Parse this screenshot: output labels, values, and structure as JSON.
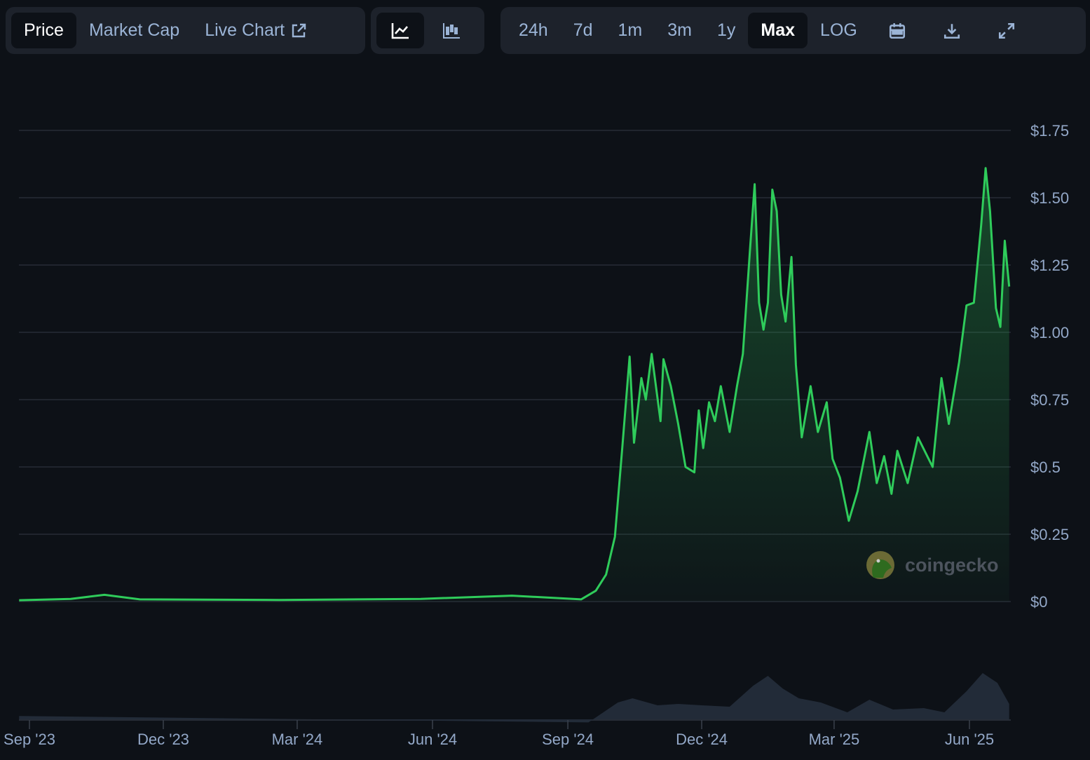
{
  "toolbar": {
    "views": [
      {
        "label": "Price",
        "active": true
      },
      {
        "label": "Market Cap",
        "active": false
      },
      {
        "label": "Live Chart",
        "active": false,
        "icon": "external-link-icon"
      }
    ],
    "chart_types": [
      {
        "icon": "line-chart-icon",
        "active": true
      },
      {
        "icon": "candlestick-chart-icon",
        "active": false
      }
    ],
    "ranges": [
      {
        "label": "24h",
        "active": false
      },
      {
        "label": "7d",
        "active": false
      },
      {
        "label": "1m",
        "active": false
      },
      {
        "label": "3m",
        "active": false
      },
      {
        "label": "1y",
        "active": false
      },
      {
        "label": "Max",
        "active": true
      },
      {
        "label": "LOG",
        "active": false
      }
    ],
    "actions": [
      "calendar-icon",
      "download-icon",
      "fullscreen-icon"
    ]
  },
  "watermark": {
    "text": "coingecko"
  },
  "colors": {
    "line": "#2fcc5b",
    "background": "#0d1117",
    "toolbar": "#1d222b",
    "volume": "#222b38",
    "grid": "#262c36",
    "axis_text": "#93a8c8"
  },
  "chart_data": {
    "type": "line",
    "ylim": [
      0,
      1.75
    ],
    "y_ticks": [
      "$0",
      "$0.25",
      "$0.5",
      "$0.75",
      "$1.00",
      "$1.25",
      "$1.50",
      "$1.75"
    ],
    "y_tick_values": [
      0,
      0.25,
      0.5,
      0.75,
      1.0,
      1.25,
      1.5,
      1.75
    ],
    "x_ticks": [
      "Sep '23",
      "Dec '23",
      "Mar '24",
      "Jun '24",
      "Sep '24",
      "Dec '24",
      "Mar '25",
      "Jun '25"
    ],
    "x_tick_dates": [
      "2023-09-01",
      "2023-12-01",
      "2024-03-01",
      "2024-06-01",
      "2024-09-01",
      "2024-12-01",
      "2025-03-01",
      "2025-06-01"
    ],
    "grid": true,
    "series": [
      {
        "points": [
          [
            "2023-08-25",
            0.005
          ],
          [
            "2023-09-29",
            0.01
          ],
          [
            "2023-10-22",
            0.025
          ],
          [
            "2023-11-15",
            0.008
          ],
          [
            "2024-02-18",
            0.006
          ],
          [
            "2024-05-24",
            0.01
          ],
          [
            "2024-07-25",
            0.022
          ],
          [
            "2024-09-10",
            0.008
          ],
          [
            "2024-09-20",
            0.04
          ],
          [
            "2024-09-27",
            0.1
          ],
          [
            "2024-10-03",
            0.24
          ],
          [
            "2024-10-08",
            0.57
          ],
          [
            "2024-10-13",
            0.91
          ],
          [
            "2024-10-16",
            0.59
          ],
          [
            "2024-10-21",
            0.83
          ],
          [
            "2024-10-24",
            0.75
          ],
          [
            "2024-10-28",
            0.92
          ],
          [
            "2024-11-03",
            0.67
          ],
          [
            "2024-11-05",
            0.9
          ],
          [
            "2024-11-10",
            0.8
          ],
          [
            "2024-11-15",
            0.66
          ],
          [
            "2024-11-20",
            0.5
          ],
          [
            "2024-11-26",
            0.48
          ],
          [
            "2024-11-29",
            0.71
          ],
          [
            "2024-12-02",
            0.57
          ],
          [
            "2024-12-06",
            0.74
          ],
          [
            "2024-12-10",
            0.67
          ],
          [
            "2024-12-14",
            0.8
          ],
          [
            "2024-12-20",
            0.63
          ],
          [
            "2024-12-25",
            0.8
          ],
          [
            "2024-12-29",
            0.92
          ],
          [
            "2025-01-03",
            1.32
          ],
          [
            "2025-01-06",
            1.55
          ],
          [
            "2025-01-09",
            1.11
          ],
          [
            "2025-01-12",
            1.01
          ],
          [
            "2025-01-15",
            1.11
          ],
          [
            "2025-01-18",
            1.53
          ],
          [
            "2025-01-21",
            1.45
          ],
          [
            "2025-01-24",
            1.14
          ],
          [
            "2025-01-27",
            1.04
          ],
          [
            "2025-01-31",
            1.28
          ],
          [
            "2025-02-03",
            0.88
          ],
          [
            "2025-02-07",
            0.61
          ],
          [
            "2025-02-13",
            0.8
          ],
          [
            "2025-02-18",
            0.63
          ],
          [
            "2025-02-24",
            0.74
          ],
          [
            "2025-02-28",
            0.53
          ],
          [
            "2025-03-05",
            0.46
          ],
          [
            "2025-03-11",
            0.3
          ],
          [
            "2025-03-17",
            0.41
          ],
          [
            "2025-03-25",
            0.63
          ],
          [
            "2025-03-30",
            0.44
          ],
          [
            "2025-04-04",
            0.54
          ],
          [
            "2025-04-09",
            0.4
          ],
          [
            "2025-04-13",
            0.56
          ],
          [
            "2025-04-20",
            0.44
          ],
          [
            "2025-04-27",
            0.61
          ],
          [
            "2025-05-07",
            0.5
          ],
          [
            "2025-05-13",
            0.83
          ],
          [
            "2025-05-18",
            0.66
          ],
          [
            "2025-05-25",
            0.89
          ],
          [
            "2025-05-30",
            1.1
          ],
          [
            "2025-06-04",
            1.11
          ],
          [
            "2025-06-09",
            1.4
          ],
          [
            "2025-06-12",
            1.61
          ],
          [
            "2025-06-15",
            1.45
          ],
          [
            "2025-06-19",
            1.09
          ],
          [
            "2025-06-22",
            1.02
          ],
          [
            "2025-06-25",
            1.34
          ],
          [
            "2025-06-28",
            1.17
          ]
        ]
      }
    ],
    "volume_relative": [
      [
        "2023-08-25",
        0.01
      ],
      [
        "2024-09-15",
        0.02
      ],
      [
        "2024-10-05",
        0.25
      ],
      [
        "2024-10-15",
        0.45
      ],
      [
        "2024-11-01",
        0.2
      ],
      [
        "2024-11-15",
        0.35
      ],
      [
        "2024-12-01",
        0.2
      ],
      [
        "2024-12-20",
        0.3
      ],
      [
        "2025-01-05",
        0.55
      ],
      [
        "2025-01-15",
        0.85
      ],
      [
        "2025-01-25",
        0.5
      ],
      [
        "2025-02-05",
        0.45
      ],
      [
        "2025-02-20",
        0.25
      ],
      [
        "2025-03-10",
        0.2
      ],
      [
        "2025-03-25",
        0.3
      ],
      [
        "2025-04-10",
        0.25
      ],
      [
        "2025-05-01",
        0.15
      ],
      [
        "2025-05-15",
        0.2
      ],
      [
        "2025-05-30",
        0.45
      ],
      [
        "2025-06-10",
        0.9
      ],
      [
        "2025-06-20",
        0.6
      ],
      [
        "2025-06-28",
        0.35
      ]
    ]
  }
}
